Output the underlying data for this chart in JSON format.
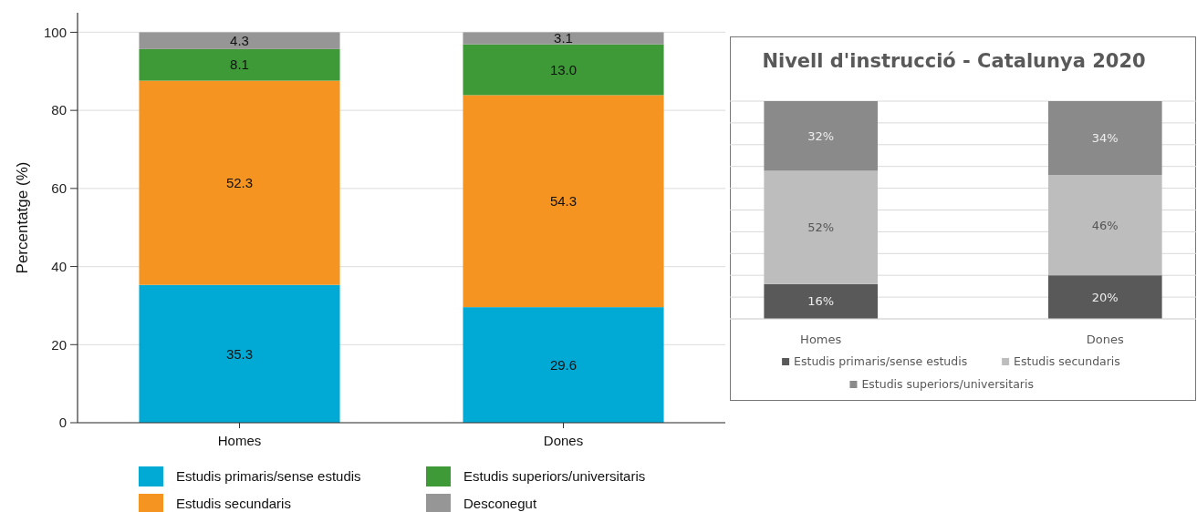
{
  "chart_data": [
    {
      "type": "bar",
      "stacked": true,
      "ylabel": "Percentatge (%)",
      "categories": [
        "Homes",
        "Dones"
      ],
      "ylim": [
        0,
        105
      ],
      "yticks": [
        0,
        20,
        40,
        60,
        80,
        100
      ],
      "grid": "y",
      "legend": "bottom",
      "series": [
        {
          "name": "Estudis primaris/sense estudis",
          "color": "#00aad4",
          "values": [
            35.3,
            29.6
          ],
          "value_labels": [
            "35.3",
            "29.6"
          ]
        },
        {
          "name": "Estudis secundaris",
          "color": "#f59420",
          "values": [
            52.3,
            54.3
          ],
          "value_labels": [
            "52.3",
            "54.3"
          ]
        },
        {
          "name": "Estudis superiors/universitaris",
          "color": "#3d9a37",
          "values": [
            8.1,
            13.0
          ],
          "value_labels": [
            "8.1",
            "13.0"
          ]
        },
        {
          "name": "Desconegut",
          "color": "#969696",
          "values": [
            4.3,
            3.1
          ],
          "value_labels": [
            "4.3",
            "3.1"
          ]
        }
      ]
    },
    {
      "type": "bar",
      "stacked": true,
      "title": "Nivell d'instrucció - Catalunya 2020",
      "categories": [
        "Homes",
        "Dones"
      ],
      "ylim": [
        0,
        100
      ],
      "yticks": [
        {
          "value": 0,
          "label": null
        },
        {
          "value": 10,
          "label": null
        },
        {
          "value": 20,
          "label": null
        },
        {
          "value": 30,
          "label": null
        },
        {
          "value": 40,
          "label": null
        },
        {
          "value": 50,
          "label": null
        },
        {
          "value": 60,
          "label": null
        },
        {
          "value": 70,
          "label": null
        },
        {
          "value": 80,
          "label": null
        },
        {
          "value": 90,
          "label": null
        },
        {
          "value": 100,
          "label": null
        }
      ],
      "tick_labels": "x",
      "grid": "y",
      "legend": "bottom",
      "series": [
        {
          "name": "Estudis primaris/sense estudis",
          "color": "#595959",
          "values": [
            16,
            20
          ],
          "value_labels": [
            "16%",
            "20%"
          ]
        },
        {
          "name": "Estudis secundaris",
          "color": "#bdbdbd",
          "values": [
            52,
            46
          ],
          "value_labels": [
            "52%",
            "46%"
          ]
        },
        {
          "name": "Estudis superiors/universitaris",
          "color": "#8a8a8a",
          "values": [
            32,
            34
          ],
          "value_labels": [
            "32%",
            "34%"
          ]
        }
      ]
    }
  ]
}
